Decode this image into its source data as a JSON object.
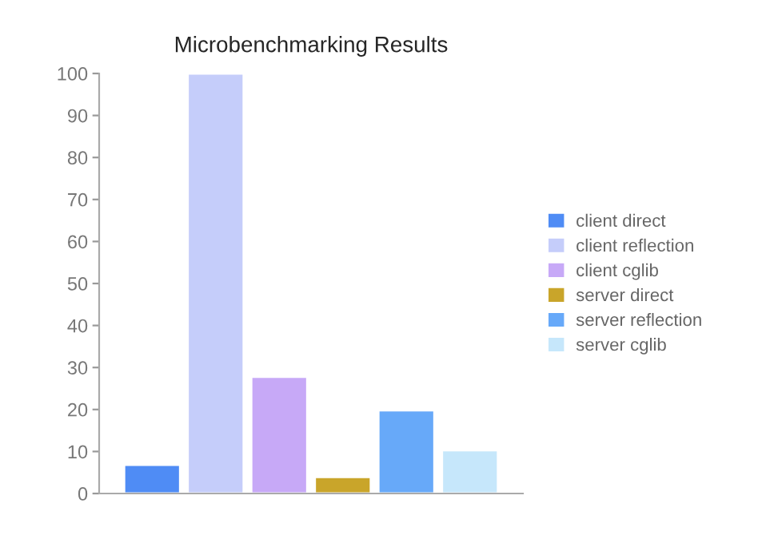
{
  "chart_data": {
    "type": "bar",
    "title": "Microbenchmarking Results",
    "categories": [
      null
    ],
    "series": [
      {
        "name": "client direct",
        "color": "#4f8cf5",
        "values": [
          6.8
        ]
      },
      {
        "name": "client reflection",
        "color": "#c5cdfa",
        "values": [
          100
        ]
      },
      {
        "name": "client cglib",
        "color": "#c7a9f7",
        "values": [
          27.8
        ]
      },
      {
        "name": "server direct",
        "color": "#c9a52a",
        "values": [
          3.9
        ]
      },
      {
        "name": "server reflection",
        "color": "#67a9f9",
        "values": [
          19.8
        ]
      },
      {
        "name": "server cglib",
        "color": "#c6e7fb",
        "values": [
          10.3
        ]
      }
    ],
    "ylim": [
      0,
      100
    ],
    "yticks": [
      0,
      10,
      20,
      30,
      40,
      50,
      60,
      70,
      80,
      90,
      100
    ],
    "grid": false,
    "legend": "right",
    "tick_labels": "y"
  }
}
